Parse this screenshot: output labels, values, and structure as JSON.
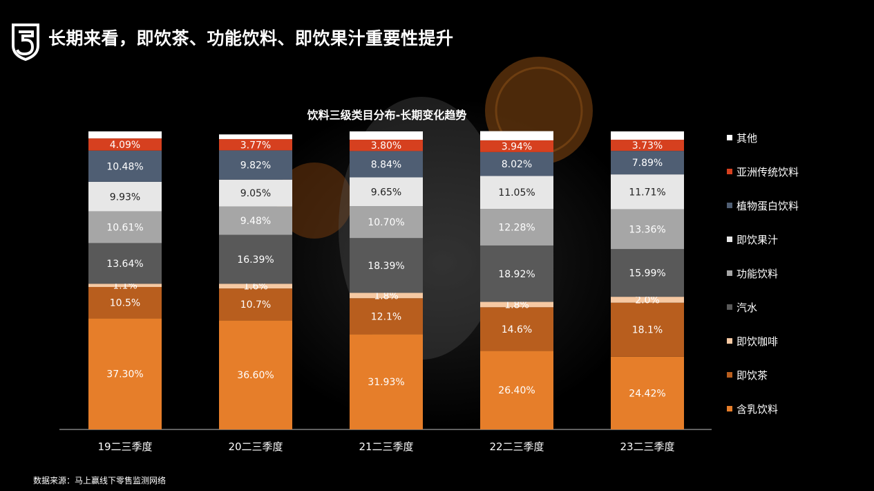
{
  "header": {
    "title": "长期来看，即饮茶、功能饮料、即饮果汁重要性提升"
  },
  "footer": {
    "source": "数据来源：马上赢线下零售监测网络"
  },
  "chart_data": {
    "type": "bar",
    "stacked": true,
    "title": "饮料三级类目分布-长期变化趋势",
    "categories": [
      "19二三季度",
      "20二三季度",
      "21二三季度",
      "22二三季度",
      "23二三季度"
    ],
    "ylim": [
      0,
      100
    ],
    "grid": false,
    "legend_position": "right",
    "series": [
      {
        "name": "含乳饮料",
        "color": "#E67E2A",
        "text_color": "#ffffff",
        "values": [
          37.3,
          36.6,
          31.93,
          26.4,
          24.42
        ],
        "labels": [
          "37.30%",
          "36.60%",
          "31.93%",
          "26.40%",
          "24.42%"
        ]
      },
      {
        "name": "即饮茶",
        "color": "#B85E1E",
        "text_color": "#ffffff",
        "values": [
          10.5,
          10.7,
          12.1,
          14.6,
          18.1
        ],
        "labels": [
          "10.5%",
          "10.7%",
          "12.1%",
          "14.6%",
          "18.1%"
        ]
      },
      {
        "name": "即饮咖啡",
        "color": "#F6C9A3",
        "text_color": "#ffffff",
        "values": [
          1.1,
          1.6,
          1.8,
          1.8,
          2.0
        ],
        "labels": [
          "1.1%",
          "1.6%",
          "1.8%",
          "1.8%",
          "2.0%"
        ]
      },
      {
        "name": "汽水",
        "color": "#595959",
        "text_color": "#ffffff",
        "values": [
          13.64,
          16.39,
          18.39,
          18.92,
          15.99
        ],
        "labels": [
          "13.64%",
          "16.39%",
          "18.39%",
          "18.92%",
          "15.99%"
        ]
      },
      {
        "name": "功能饮料",
        "color": "#A6A6A6",
        "text_color": "#ffffff",
        "values": [
          10.61,
          9.48,
          10.7,
          12.28,
          13.36
        ],
        "labels": [
          "10.61%",
          "9.48%",
          "10.70%",
          "12.28%",
          "13.36%"
        ]
      },
      {
        "name": "即饮果汁",
        "color": "#E7E7E7",
        "text_color": "#222222",
        "values": [
          9.93,
          9.05,
          9.65,
          11.05,
          11.71
        ],
        "labels": [
          "9.93%",
          "9.05%",
          "9.65%",
          "11.05%",
          "11.71%"
        ]
      },
      {
        "name": "植物蛋白饮料",
        "color": "#4F5E73",
        "text_color": "#ffffff",
        "values": [
          10.48,
          9.82,
          8.84,
          8.02,
          7.89
        ],
        "labels": [
          "10.48%",
          "9.82%",
          "8.84%",
          "8.02%",
          "7.89%"
        ]
      },
      {
        "name": "亚洲传统饮料",
        "color": "#D6401F",
        "text_color": "#ffffff",
        "values": [
          4.09,
          3.77,
          3.8,
          3.94,
          3.73
        ],
        "labels": [
          "4.09%",
          "3.77%",
          "3.80%",
          "3.94%",
          "3.73%"
        ]
      },
      {
        "name": "其他",
        "color": "#ffffff",
        "text_color": "#222222",
        "values": [
          2.35,
          1.58,
          2.79,
          3.07,
          2.8
        ],
        "labels": [
          "",
          "",
          "",
          "",
          ""
        ]
      }
    ],
    "legend_order": [
      "其他",
      "亚洲传统饮料",
      "植物蛋白饮料",
      "即饮果汁",
      "功能饮料",
      "汽水",
      "即饮咖啡",
      "即饮茶",
      "含乳饮料"
    ]
  }
}
